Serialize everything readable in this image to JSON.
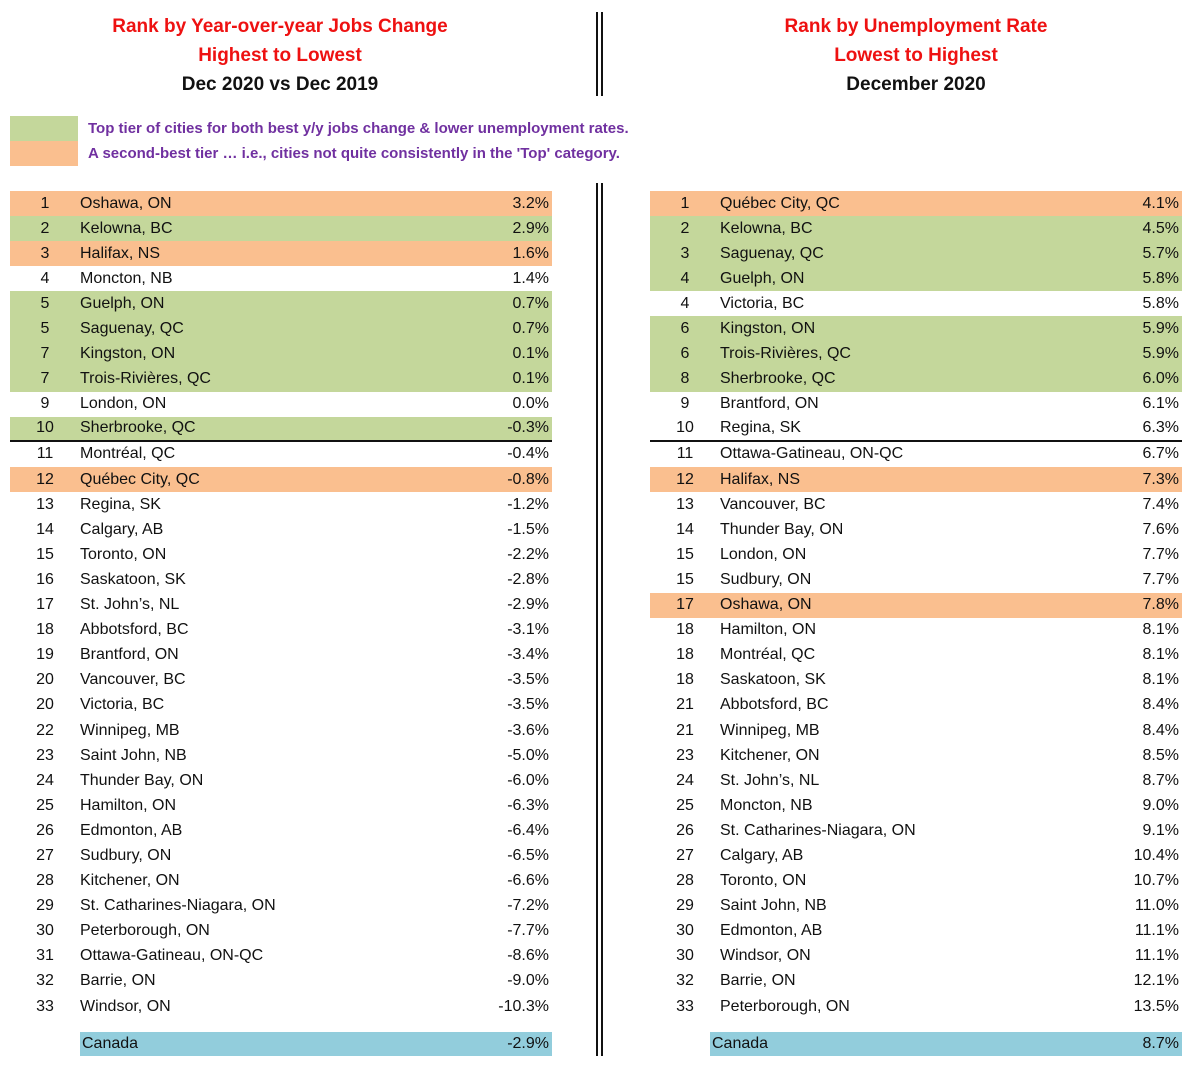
{
  "left_header": {
    "line1": "Rank by Year-over-year Jobs Change",
    "line2": "Highest to Lowest",
    "line3": "Dec 2020 vs Dec 2019"
  },
  "right_header": {
    "line1": "Rank by Unemployment Rate",
    "line2": "Lowest to Highest",
    "line3": "December 2020"
  },
  "legend": {
    "green_text": "Top tier of cities for both best y/y jobs change & lower unemployment rates.",
    "orange_text": "A second-best tier … i.e., cities not quite consistently in the 'Top' category.",
    "green_color": "#c4d79b",
    "orange_color": "#fabf8f"
  },
  "left_rows": [
    {
      "rank": "1",
      "city": "Oshawa, ON",
      "value": "3.2%",
      "tier": "orange"
    },
    {
      "rank": "2",
      "city": "Kelowna, BC",
      "value": "2.9%",
      "tier": "green"
    },
    {
      "rank": "3",
      "city": "Halifax, NS",
      "value": "1.6%",
      "tier": "orange"
    },
    {
      "rank": "4",
      "city": "Moncton, NB",
      "value": "1.4%",
      "tier": ""
    },
    {
      "rank": "5",
      "city": "Guelph, ON",
      "value": "0.7%",
      "tier": "green"
    },
    {
      "rank": "5",
      "city": "Saguenay, QC",
      "value": "0.7%",
      "tier": "green"
    },
    {
      "rank": "7",
      "city": "Kingston, ON",
      "value": "0.1%",
      "tier": "green"
    },
    {
      "rank": "7",
      "city": "Trois-Rivières, QC",
      "value": "0.1%",
      "tier": "green"
    },
    {
      "rank": "9",
      "city": "London, ON",
      "value": "0.0%",
      "tier": ""
    },
    {
      "rank": "10",
      "city": "Sherbrooke, QC",
      "value": "-0.3%",
      "tier": "green",
      "cut": true
    },
    {
      "rank": "11",
      "city": "Montréal, QC",
      "value": "-0.4%",
      "tier": ""
    },
    {
      "rank": "12",
      "city": "Québec City, QC",
      "value": "-0.8%",
      "tier": "orange"
    },
    {
      "rank": "13",
      "city": "Regina, SK",
      "value": "-1.2%",
      "tier": ""
    },
    {
      "rank": "14",
      "city": "Calgary, AB",
      "value": "-1.5%",
      "tier": ""
    },
    {
      "rank": "15",
      "city": "Toronto, ON",
      "value": "-2.2%",
      "tier": ""
    },
    {
      "rank": "16",
      "city": "Saskatoon, SK",
      "value": "-2.8%",
      "tier": ""
    },
    {
      "rank": "17",
      "city": "St. John’s, NL",
      "value": "-2.9%",
      "tier": ""
    },
    {
      "rank": "18",
      "city": "Abbotsford, BC",
      "value": "-3.1%",
      "tier": ""
    },
    {
      "rank": "19",
      "city": "Brantford, ON",
      "value": "-3.4%",
      "tier": ""
    },
    {
      "rank": "20",
      "city": "Vancouver, BC",
      "value": "-3.5%",
      "tier": ""
    },
    {
      "rank": "20",
      "city": "Victoria, BC",
      "value": "-3.5%",
      "tier": ""
    },
    {
      "rank": "22",
      "city": "Winnipeg, MB",
      "value": "-3.6%",
      "tier": ""
    },
    {
      "rank": "23",
      "city": "Saint John, NB",
      "value": "-5.0%",
      "tier": ""
    },
    {
      "rank": "24",
      "city": "Thunder Bay, ON",
      "value": "-6.0%",
      "tier": ""
    },
    {
      "rank": "25",
      "city": "Hamilton, ON",
      "value": "-6.3%",
      "tier": ""
    },
    {
      "rank": "26",
      "city": "Edmonton, AB",
      "value": "-6.4%",
      "tier": ""
    },
    {
      "rank": "27",
      "city": "Sudbury, ON",
      "value": "-6.5%",
      "tier": ""
    },
    {
      "rank": "28",
      "city": "Kitchener, ON",
      "value": "-6.6%",
      "tier": ""
    },
    {
      "rank": "29",
      "city": "St. Catharines-Niagara, ON",
      "value": "-7.2%",
      "tier": ""
    },
    {
      "rank": "30",
      "city": "Peterborough, ON",
      "value": "-7.7%",
      "tier": ""
    },
    {
      "rank": "31",
      "city": "Ottawa-Gatineau, ON-QC",
      "value": "-8.6%",
      "tier": ""
    },
    {
      "rank": "32",
      "city": "Barrie, ON",
      "value": "-9.0%",
      "tier": ""
    },
    {
      "rank": "33",
      "city": "Windsor, ON",
      "value": "-10.3%",
      "tier": ""
    }
  ],
  "right_rows": [
    {
      "rank": "1",
      "city": "Québec City, QC",
      "value": "4.1%",
      "tier": "orange"
    },
    {
      "rank": "2",
      "city": "Kelowna, BC",
      "value": "4.5%",
      "tier": "green"
    },
    {
      "rank": "3",
      "city": "Saguenay, QC",
      "value": "5.7%",
      "tier": "green"
    },
    {
      "rank": "4",
      "city": "Guelph, ON",
      "value": "5.8%",
      "tier": "green"
    },
    {
      "rank": "4",
      "city": "Victoria, BC",
      "value": "5.8%",
      "tier": ""
    },
    {
      "rank": "6",
      "city": "Kingston, ON",
      "value": "5.9%",
      "tier": "green"
    },
    {
      "rank": "6",
      "city": "Trois-Rivières, QC",
      "value": "5.9%",
      "tier": "green"
    },
    {
      "rank": "8",
      "city": "Sherbrooke, QC",
      "value": "6.0%",
      "tier": "green"
    },
    {
      "rank": "9",
      "city": "Brantford, ON",
      "value": "6.1%",
      "tier": ""
    },
    {
      "rank": "10",
      "city": "Regina, SK",
      "value": "6.3%",
      "tier": "",
      "cut": true
    },
    {
      "rank": "11",
      "city": "Ottawa-Gatineau, ON-QC",
      "value": "6.7%",
      "tier": ""
    },
    {
      "rank": "12",
      "city": "Halifax, NS",
      "value": "7.3%",
      "tier": "orange"
    },
    {
      "rank": "13",
      "city": "Vancouver, BC",
      "value": "7.4%",
      "tier": ""
    },
    {
      "rank": "14",
      "city": "Thunder Bay, ON",
      "value": "7.6%",
      "tier": ""
    },
    {
      "rank": "15",
      "city": "London, ON",
      "value": "7.7%",
      "tier": ""
    },
    {
      "rank": "15",
      "city": "Sudbury, ON",
      "value": "7.7%",
      "tier": ""
    },
    {
      "rank": "17",
      "city": "Oshawa, ON",
      "value": "7.8%",
      "tier": "orange"
    },
    {
      "rank": "18",
      "city": "Hamilton, ON",
      "value": "8.1%",
      "tier": ""
    },
    {
      "rank": "18",
      "city": "Montréal, QC",
      "value": "8.1%",
      "tier": ""
    },
    {
      "rank": "18",
      "city": "Saskatoon, SK",
      "value": "8.1%",
      "tier": ""
    },
    {
      "rank": "21",
      "city": "Abbotsford, BC",
      "value": "8.4%",
      "tier": ""
    },
    {
      "rank": "21",
      "city": "Winnipeg, MB",
      "value": "8.4%",
      "tier": ""
    },
    {
      "rank": "23",
      "city": "Kitchener, ON",
      "value": "8.5%",
      "tier": ""
    },
    {
      "rank": "24",
      "city": "St. John’s, NL",
      "value": "8.7%",
      "tier": ""
    },
    {
      "rank": "25",
      "city": "Moncton, NB",
      "value": "9.0%",
      "tier": ""
    },
    {
      "rank": "26",
      "city": "St. Catharines-Niagara, ON",
      "value": "9.1%",
      "tier": ""
    },
    {
      "rank": "27",
      "city": "Calgary, AB",
      "value": "10.4%",
      "tier": ""
    },
    {
      "rank": "28",
      "city": "Toronto, ON",
      "value": "10.7%",
      "tier": ""
    },
    {
      "rank": "29",
      "city": "Saint John, NB",
      "value": "11.0%",
      "tier": ""
    },
    {
      "rank": "30",
      "city": "Edmonton, AB",
      "value": "11.1%",
      "tier": ""
    },
    {
      "rank": "30",
      "city": "Windsor, ON",
      "value": "11.1%",
      "tier": ""
    },
    {
      "rank": "32",
      "city": "Barrie, ON",
      "value": "12.1%",
      "tier": ""
    },
    {
      "rank": "33",
      "city": "Peterborough, ON",
      "value": "13.5%",
      "tier": ""
    }
  ],
  "left_total": {
    "city": "Canada",
    "value": "-2.9%"
  },
  "right_total": {
    "city": "Canada",
    "value": "8.7%"
  },
  "colors": {
    "total_bg": "#92cddc",
    "header_red": "#ee1111",
    "legend_purple": "#7030a0"
  }
}
